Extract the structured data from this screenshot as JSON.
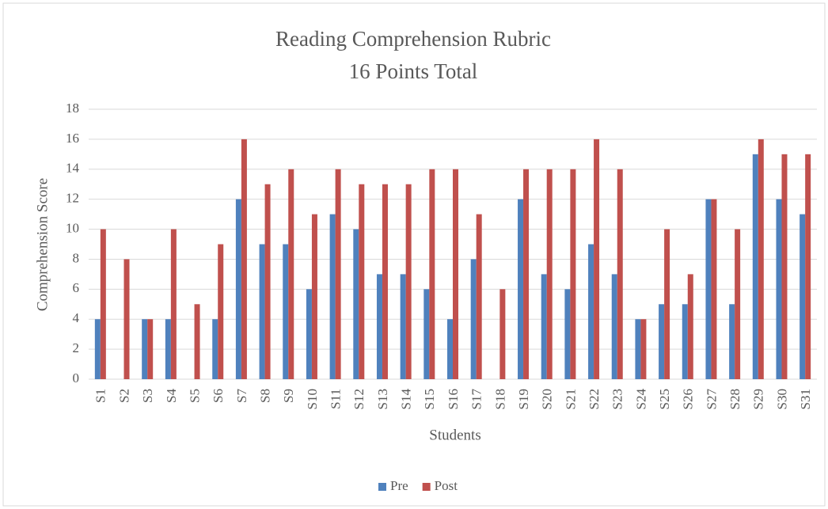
{
  "chart_data": {
    "type": "bar",
    "title": "Reading Comprehension Rubric",
    "subtitle": "16 Points Total",
    "x_label": "Students",
    "y_label": "Comprehension Score",
    "categories": [
      "S1",
      "S2",
      "S3",
      "S4",
      "S5",
      "S6",
      "S7",
      "S8",
      "S9",
      "S10",
      "S11",
      "S12",
      "S13",
      "S14",
      "S15",
      "S16",
      "S17",
      "S18",
      "S19",
      "S20",
      "S21",
      "S22",
      "S23",
      "S24",
      "S25",
      "S26",
      "S27",
      "S28",
      "S29",
      "S30",
      "S31"
    ],
    "series": [
      {
        "name": "Pre",
        "color": "#4f81bd",
        "values": [
          4,
          0,
          4,
          4,
          0,
          4,
          12,
          9,
          9,
          6,
          11,
          10,
          7,
          7,
          6,
          4,
          8,
          0,
          12,
          7,
          6,
          9,
          7,
          4,
          5,
          5,
          12,
          5,
          15,
          12,
          11
        ]
      },
      {
        "name": "Post",
        "color": "#c0504d",
        "values": [
          10,
          8,
          4,
          10,
          5,
          9,
          16,
          13,
          14,
          11,
          14,
          13,
          13,
          13,
          14,
          14,
          11,
          6,
          14,
          14,
          14,
          16,
          14,
          4,
          10,
          7,
          12,
          10,
          16,
          15,
          15
        ]
      }
    ],
    "ylim": [
      0,
      18
    ],
    "yticks": [
      0,
      2,
      4,
      6,
      8,
      10,
      12,
      14,
      16,
      18
    ],
    "grid": true,
    "legend": "bottom"
  }
}
